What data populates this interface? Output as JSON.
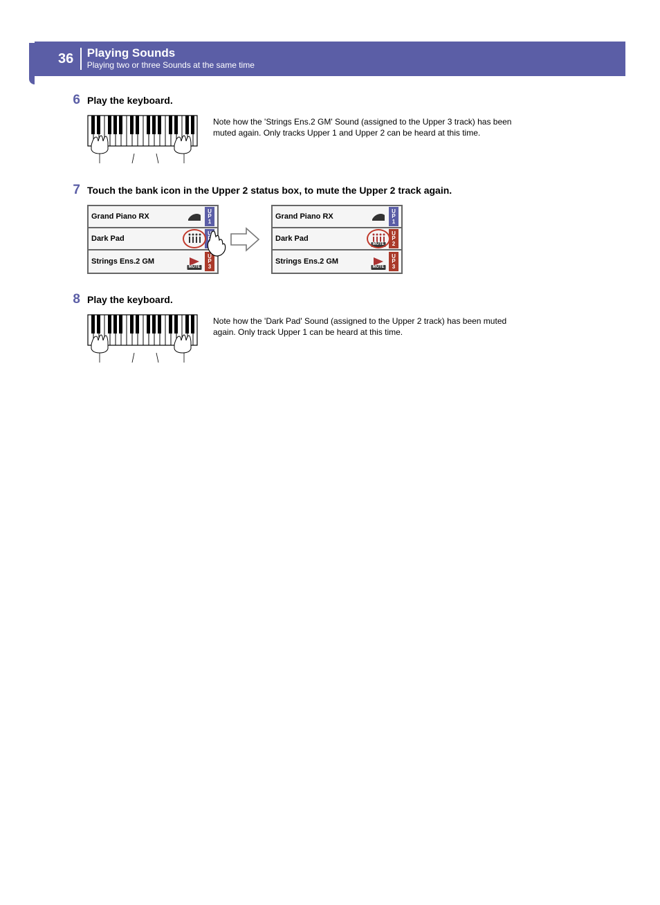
{
  "header": {
    "page_number": "36",
    "section": "Playing Sounds",
    "subsection": "Playing two or three Sounds at the same time",
    "bg_color": "#5b5ea6",
    "text_color": "#ffffff"
  },
  "steps": {
    "s6": {
      "number": "6",
      "title": "Play the keyboard.",
      "note": "Note how the 'Strings Ens.2 GM' Sound (assigned to the Upper 3 track) has been muted again. Only tracks Upper 1 and Upper 2 can be heard at this time."
    },
    "s7": {
      "number": "7",
      "title": "Touch the bank icon in the Upper 2 status box, to mute the Upper 2 track again.",
      "left_panel": {
        "rows": [
          {
            "label": "Grand Piano RX",
            "up": "U P 1",
            "flag": "active",
            "muted": false
          },
          {
            "label": "Dark Pad",
            "up": "U P 2",
            "flag": "active",
            "muted": false,
            "highlight": true
          },
          {
            "label": "Strings Ens.2 GM",
            "up": "U P 3",
            "flag": "muted",
            "muted": true
          }
        ]
      },
      "right_panel": {
        "rows": [
          {
            "label": "Grand Piano RX",
            "up": "U P 1",
            "flag": "active",
            "muted": false
          },
          {
            "label": "Dark Pad",
            "up": "U P 2",
            "flag": "muted",
            "muted": true,
            "highlight": true
          },
          {
            "label": "Strings Ens.2 GM",
            "up": "U P 3",
            "flag": "muted",
            "muted": true
          }
        ]
      },
      "mute_label": "MUTE"
    },
    "s8": {
      "number": "8",
      "title": "Play the keyboard.",
      "note": "Note how the 'Dark Pad' Sound (assigned to the Upper 2 track) has been muted again. Only track Upper 1 can be heard at this time."
    }
  },
  "colors": {
    "accent": "#5b5ea6",
    "highlight_ring": "#c0392b",
    "muted_flag": "#aa3a2a"
  }
}
